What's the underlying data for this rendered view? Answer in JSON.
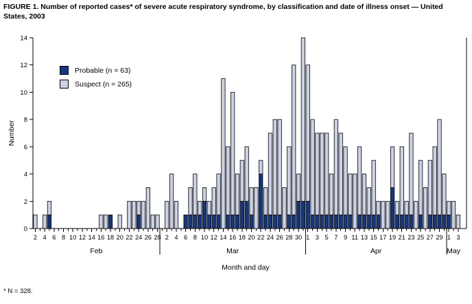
{
  "figure": {
    "title": "FIGURE 1. Number of reported cases* of severe acute respiratory syndrome, by classification and date of illness onset — United States, 2003",
    "footnote": "* N = 328."
  },
  "legend": {
    "items": [
      {
        "label": "Probable (n = 63)",
        "color": "#17377c"
      },
      {
        "label": "Suspect (n = 265)",
        "color": "#ccd2e4"
      }
    ]
  },
  "chart_data": {
    "type": "bar",
    "stacked": true,
    "title": "FIGURE 1. Number of reported cases* of severe acute respiratory syndrome, by classification and date of illness onset — United States, 2003",
    "xlabel": "Month and day",
    "ylabel": "Number",
    "ylim": [
      0,
      14
    ],
    "yticks": [
      0,
      2,
      4,
      6,
      8,
      10,
      12,
      14
    ],
    "grid": false,
    "legend_position": "upper-left-inside",
    "bar_outline_color": "#000000",
    "months": [
      {
        "name": "Feb",
        "start_day": 2,
        "end_day": 28,
        "labeled_days": "even"
      },
      {
        "name": "Mar",
        "start_day": 1,
        "end_day": 31,
        "labeled_days": "even"
      },
      {
        "name": "Apr",
        "start_day": 1,
        "end_day": 30,
        "labeled_days": "odd"
      },
      {
        "name": "May",
        "start_day": 1,
        "end_day": 3,
        "labeled_days": "odd"
      }
    ],
    "series": [
      {
        "name": "Probable (n = 63)",
        "color": "#17377c",
        "total": 63
      },
      {
        "name": "Suspect (n = 265)",
        "color": "#ccd2e4",
        "total": 265
      }
    ],
    "days": [
      {
        "date": "Feb 2",
        "probable": 0,
        "suspect": 1
      },
      {
        "date": "Feb 4",
        "probable": 0,
        "suspect": 1
      },
      {
        "date": "Feb 5",
        "probable": 1,
        "suspect": 1
      },
      {
        "date": "Feb 16",
        "probable": 0,
        "suspect": 1
      },
      {
        "date": "Feb 17",
        "probable": 0,
        "suspect": 1
      },
      {
        "date": "Feb 18",
        "probable": 1,
        "suspect": 0
      },
      {
        "date": "Feb 20",
        "probable": 0,
        "suspect": 1
      },
      {
        "date": "Feb 22",
        "probable": 0,
        "suspect": 2
      },
      {
        "date": "Feb 23",
        "probable": 0,
        "suspect": 2
      },
      {
        "date": "Feb 24",
        "probable": 1,
        "suspect": 1
      },
      {
        "date": "Feb 25",
        "probable": 0,
        "suspect": 2
      },
      {
        "date": "Feb 26",
        "probable": 0,
        "suspect": 3
      },
      {
        "date": "Feb 27",
        "probable": 0,
        "suspect": 1
      },
      {
        "date": "Feb 28",
        "probable": 0,
        "suspect": 1
      },
      {
        "date": "Mar 2",
        "probable": 0,
        "suspect": 2
      },
      {
        "date": "Mar 3",
        "probable": 0,
        "suspect": 4
      },
      {
        "date": "Mar 4",
        "probable": 0,
        "suspect": 2
      },
      {
        "date": "Mar 6",
        "probable": 1,
        "suspect": 0
      },
      {
        "date": "Mar 7",
        "probable": 1,
        "suspect": 2
      },
      {
        "date": "Mar 8",
        "probable": 1,
        "suspect": 3
      },
      {
        "date": "Mar 9",
        "probable": 1,
        "suspect": 1
      },
      {
        "date": "Mar 10",
        "probable": 2,
        "suspect": 1
      },
      {
        "date": "Mar 11",
        "probable": 1,
        "suspect": 1
      },
      {
        "date": "Mar 12",
        "probable": 1,
        "suspect": 2
      },
      {
        "date": "Mar 13",
        "probable": 1,
        "suspect": 3
      },
      {
        "date": "Mar 14",
        "probable": 0,
        "suspect": 11
      },
      {
        "date": "Mar 15",
        "probable": 1,
        "suspect": 5
      },
      {
        "date": "Mar 16",
        "probable": 1,
        "suspect": 9
      },
      {
        "date": "Mar 17",
        "probable": 1,
        "suspect": 3
      },
      {
        "date": "Mar 18",
        "probable": 2,
        "suspect": 3
      },
      {
        "date": "Mar 19",
        "probable": 2,
        "suspect": 4
      },
      {
        "date": "Mar 20",
        "probable": 1,
        "suspect": 2
      },
      {
        "date": "Mar 21",
        "probable": 0,
        "suspect": 3
      },
      {
        "date": "Mar 22",
        "probable": 4,
        "suspect": 1
      },
      {
        "date": "Mar 23",
        "probable": 1,
        "suspect": 2
      },
      {
        "date": "Mar 24",
        "probable": 1,
        "suspect": 6
      },
      {
        "date": "Mar 25",
        "probable": 1,
        "suspect": 7
      },
      {
        "date": "Mar 26",
        "probable": 1,
        "suspect": 7
      },
      {
        "date": "Mar 27",
        "probable": 0,
        "suspect": 3
      },
      {
        "date": "Mar 28",
        "probable": 1,
        "suspect": 5
      },
      {
        "date": "Mar 29",
        "probable": 1,
        "suspect": 11
      },
      {
        "date": "Mar 30",
        "probable": 2,
        "suspect": 2
      },
      {
        "date": "Mar 31",
        "probable": 2,
        "suspect": 12
      },
      {
        "date": "Apr 1",
        "probable": 2,
        "suspect": 10
      },
      {
        "date": "Apr 2",
        "probable": 1,
        "suspect": 7
      },
      {
        "date": "Apr 3",
        "probable": 1,
        "suspect": 6
      },
      {
        "date": "Apr 4",
        "probable": 1,
        "suspect": 6
      },
      {
        "date": "Apr 5",
        "probable": 1,
        "suspect": 6
      },
      {
        "date": "Apr 6",
        "probable": 1,
        "suspect": 3
      },
      {
        "date": "Apr 7",
        "probable": 1,
        "suspect": 7
      },
      {
        "date": "Apr 8",
        "probable": 1,
        "suspect": 6
      },
      {
        "date": "Apr 9",
        "probable": 1,
        "suspect": 5
      },
      {
        "date": "Apr 10",
        "probable": 1,
        "suspect": 3
      },
      {
        "date": "Apr 11",
        "probable": 0,
        "suspect": 4
      },
      {
        "date": "Apr 12",
        "probable": 1,
        "suspect": 5
      },
      {
        "date": "Apr 13",
        "probable": 1,
        "suspect": 3
      },
      {
        "date": "Apr 14",
        "probable": 1,
        "suspect": 2
      },
      {
        "date": "Apr 15",
        "probable": 1,
        "suspect": 4
      },
      {
        "date": "Apr 16",
        "probable": 1,
        "suspect": 1
      },
      {
        "date": "Apr 17",
        "probable": 0,
        "suspect": 2
      },
      {
        "date": "Apr 18",
        "probable": 0,
        "suspect": 2
      },
      {
        "date": "Apr 19",
        "probable": 3,
        "suspect": 3
      },
      {
        "date": "Apr 20",
        "probable": 1,
        "suspect": 1
      },
      {
        "date": "Apr 21",
        "probable": 1,
        "suspect": 5
      },
      {
        "date": "Apr 22",
        "probable": 1,
        "suspect": 1
      },
      {
        "date": "Apr 23",
        "probable": 1,
        "suspect": 6
      },
      {
        "date": "Apr 24",
        "probable": 0,
        "suspect": 2
      },
      {
        "date": "Apr 25",
        "probable": 1,
        "suspect": 4
      },
      {
        "date": "Apr 26",
        "probable": 0,
        "suspect": 3
      },
      {
        "date": "Apr 27",
        "probable": 1,
        "suspect": 4
      },
      {
        "date": "Apr 28",
        "probable": 1,
        "suspect": 5
      },
      {
        "date": "Apr 29",
        "probable": 1,
        "suspect": 7
      },
      {
        "date": "Apr 30",
        "probable": 1,
        "suspect": 3
      },
      {
        "date": "May 1",
        "probable": 1,
        "suspect": 1
      },
      {
        "date": "May 2",
        "probable": 0,
        "suspect": 2
      },
      {
        "date": "May 3",
        "probable": 0,
        "suspect": 1
      }
    ]
  }
}
